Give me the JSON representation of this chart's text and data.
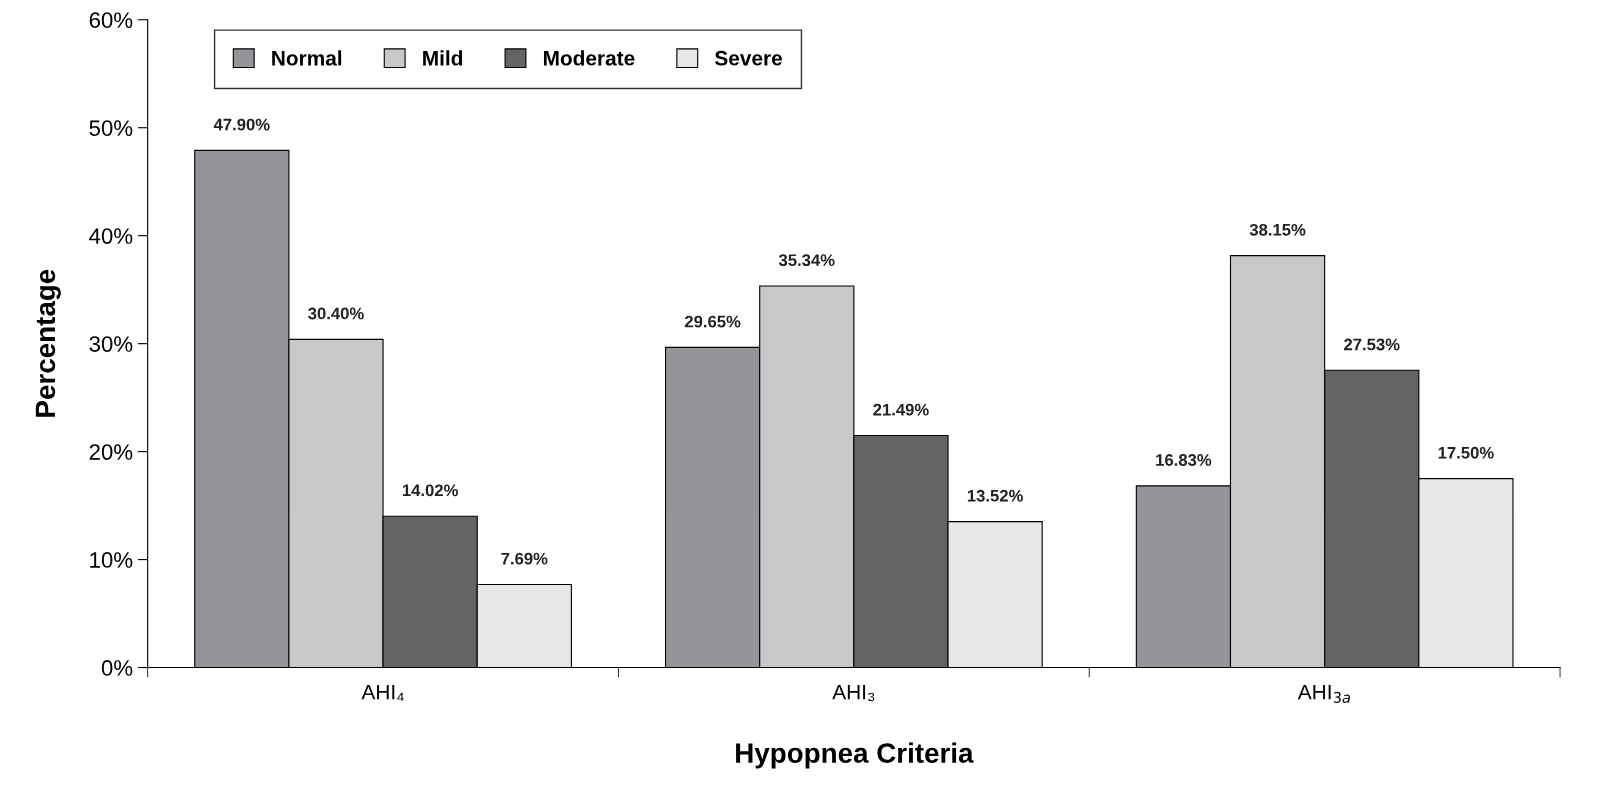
{
  "chart_data": {
    "type": "bar",
    "xlabel": "Hypopnea Criteria",
    "ylabel": "Percentage",
    "categories": [
      "AHI₄",
      "AHI₃",
      "AHI$_{3a}$"
    ],
    "series": [
      {
        "name": "Normal",
        "color": "#939598",
        "values": [
          47.9,
          29.65,
          16.83
        ],
        "value_labels": [
          "47.90%",
          "29.65%",
          "16.83%"
        ]
      },
      {
        "name": "Mild",
        "color": "#c7c8ca",
        "values": [
          30.4,
          35.34,
          38.15
        ],
        "value_labels": [
          "30.40%",
          "35.34%",
          "38.15%"
        ]
      },
      {
        "name": "Moderate",
        "color": "#636466",
        "values": [
          14.02,
          21.49,
          27.53
        ],
        "value_labels": [
          "14.02%",
          "21.49%",
          "27.53%"
        ]
      },
      {
        "name": "Severe",
        "color": "#e6e7e8",
        "values": [
          7.69,
          13.52,
          17.5
        ],
        "value_labels": [
          "7.69%",
          "13.52%",
          "17.50%"
        ]
      }
    ],
    "ylim": [
      0,
      60
    ],
    "yticks": [
      {
        "value": 0,
        "label": "0%"
      },
      {
        "value": 10,
        "label": "10%"
      },
      {
        "value": 20,
        "label": "20%"
      },
      {
        "value": 30,
        "label": "30%"
      },
      {
        "value": 40,
        "label": "40%"
      },
      {
        "value": 50,
        "label": "50%"
      },
      {
        "value": 60,
        "label": "60%"
      }
    ],
    "grid": false,
    "legend": "top left"
  }
}
